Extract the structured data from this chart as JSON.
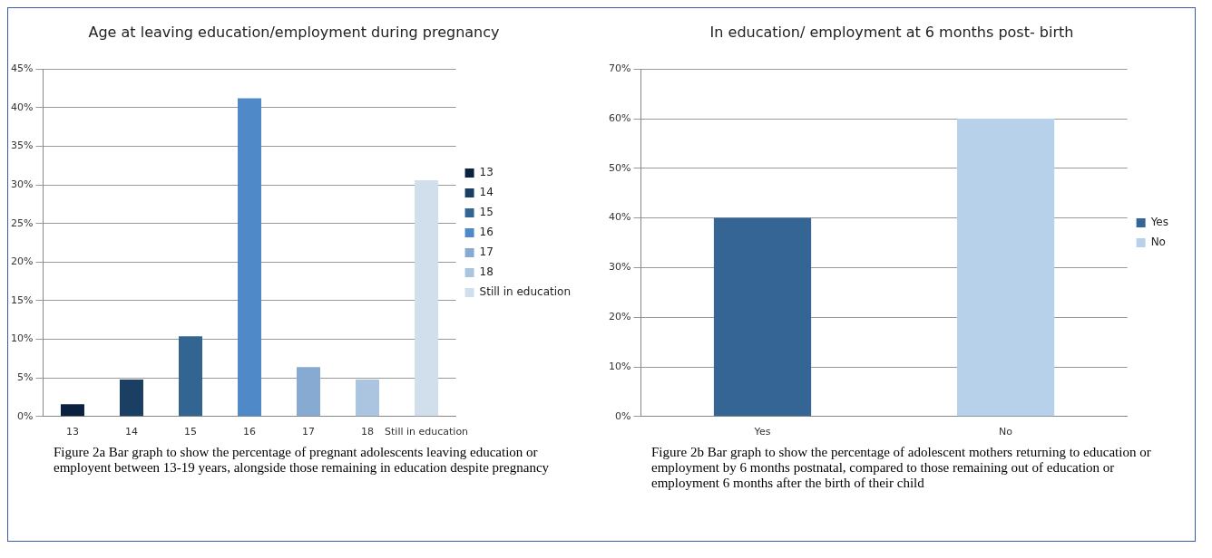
{
  "chart_data": [
    {
      "type": "bar",
      "title": "Age at leaving education/employment during pregnancy",
      "categories": [
        "13",
        "14",
        "15",
        "16",
        "17",
        "18",
        "Still in education"
      ],
      "series": [
        {
          "name": "13",
          "color": "#0a2240",
          "values": [
            1.6,
            null,
            null,
            null,
            null,
            null,
            null
          ]
        },
        {
          "name": "14",
          "color": "#1b3f62",
          "values": [
            null,
            4.8,
            null,
            null,
            null,
            null,
            null
          ]
        },
        {
          "name": "15",
          "color": "#336593",
          "values": [
            null,
            null,
            10.4,
            null,
            null,
            null,
            null
          ]
        },
        {
          "name": "16",
          "color": "#4f89c7",
          "values": [
            null,
            null,
            null,
            41.2,
            null,
            null,
            null
          ]
        },
        {
          "name": "17",
          "color": "#87aad2",
          "values": [
            null,
            null,
            null,
            null,
            6.4,
            null,
            null
          ]
        },
        {
          "name": "18",
          "color": "#abc5e0",
          "values": [
            null,
            null,
            null,
            null,
            null,
            4.8,
            null
          ]
        },
        {
          "name": "Still in education",
          "color": "#d1dfec",
          "values": [
            null,
            null,
            null,
            null,
            null,
            null,
            30.6
          ]
        }
      ],
      "ylim": [
        0,
        45
      ],
      "yticks": [
        {
          "value": 0,
          "label": "0%"
        },
        {
          "value": 5,
          "label": "5%"
        },
        {
          "value": 10,
          "label": "10%"
        },
        {
          "value": 15,
          "label": "15%"
        },
        {
          "value": 20,
          "label": "20%"
        },
        {
          "value": 25,
          "label": "25%"
        },
        {
          "value": 30,
          "label": "30%"
        },
        {
          "value": 35,
          "label": "35%"
        },
        {
          "value": 40,
          "label": "40%"
        },
        {
          "value": 45,
          "label": "45%"
        }
      ],
      "grid": "y",
      "legend": "right",
      "annotations": [
        "Figure 2a Bar graph to show the percentage of pregnant adolescents leaving education or employent between 13-19 years, alongside those remaining in education despite pregnancy"
      ]
    },
    {
      "type": "bar",
      "title": "In education/ employment at 6 months post- birth",
      "categories": [
        "Yes",
        "No"
      ],
      "series": [
        {
          "name": "Yes",
          "color": "#346594",
          "values": [
            40,
            null
          ]
        },
        {
          "name": "No",
          "color": "#b7d1eb",
          "values": [
            null,
            60
          ]
        }
      ],
      "ylim": [
        0,
        70
      ],
      "yticks": [
        {
          "value": 0,
          "label": "0%"
        },
        {
          "value": 10,
          "label": "10%"
        },
        {
          "value": 20,
          "label": "20%"
        },
        {
          "value": 30,
          "label": "30%"
        },
        {
          "value": 40,
          "label": "40%"
        },
        {
          "value": 50,
          "label": "50%"
        },
        {
          "value": 60,
          "label": "60%"
        },
        {
          "value": 70,
          "label": "70%"
        }
      ],
      "grid": "y",
      "legend": "right",
      "annotations": [
        "Figure 2b Bar graph to show the percentage of adolescent mothers returning to education or employment by 6 months postnatal, compared to those remaining out of education or employment 6 months after the birth of their child"
      ]
    }
  ]
}
